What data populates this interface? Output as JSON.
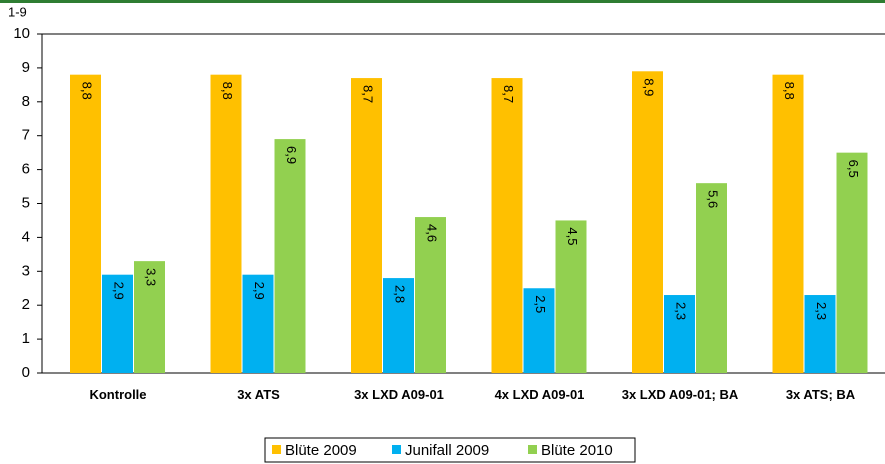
{
  "chart_data": {
    "type": "bar",
    "y_axis_label": "1-9",
    "categories": [
      "Kontrolle",
      "3x ATS",
      "3x LXD A09-01",
      "4x LXD A09-01",
      "3x LXD A09-01; BA",
      "3x ATS; BA"
    ],
    "series": [
      {
        "name": "Blüte 2009",
        "color": "#ffc000",
        "values": [
          8.8,
          8.8,
          8.7,
          8.7,
          8.9,
          8.8
        ],
        "value_labels": [
          "8,8",
          "8,8",
          "8,7",
          "8,7",
          "8,9",
          "8,8"
        ]
      },
      {
        "name": "Junifall 2009",
        "color": "#00b0f0",
        "values": [
          2.9,
          2.9,
          2.8,
          2.5,
          2.3,
          2.3
        ],
        "value_labels": [
          "2,9",
          "2,9",
          "2,8",
          "2,5",
          "2,3",
          "2,3"
        ]
      },
      {
        "name": "Blüte 2010",
        "color": "#92d050",
        "values": [
          3.3,
          6.9,
          4.6,
          4.5,
          5.6,
          6.5
        ],
        "value_labels": [
          "3,3",
          "6,9",
          "4,6",
          "4,5",
          "5,6",
          "6,5"
        ]
      }
    ],
    "ylim": [
      0,
      10
    ],
    "yticks": [
      0,
      1,
      2,
      3,
      4,
      5,
      6,
      7,
      8,
      9,
      10
    ]
  }
}
